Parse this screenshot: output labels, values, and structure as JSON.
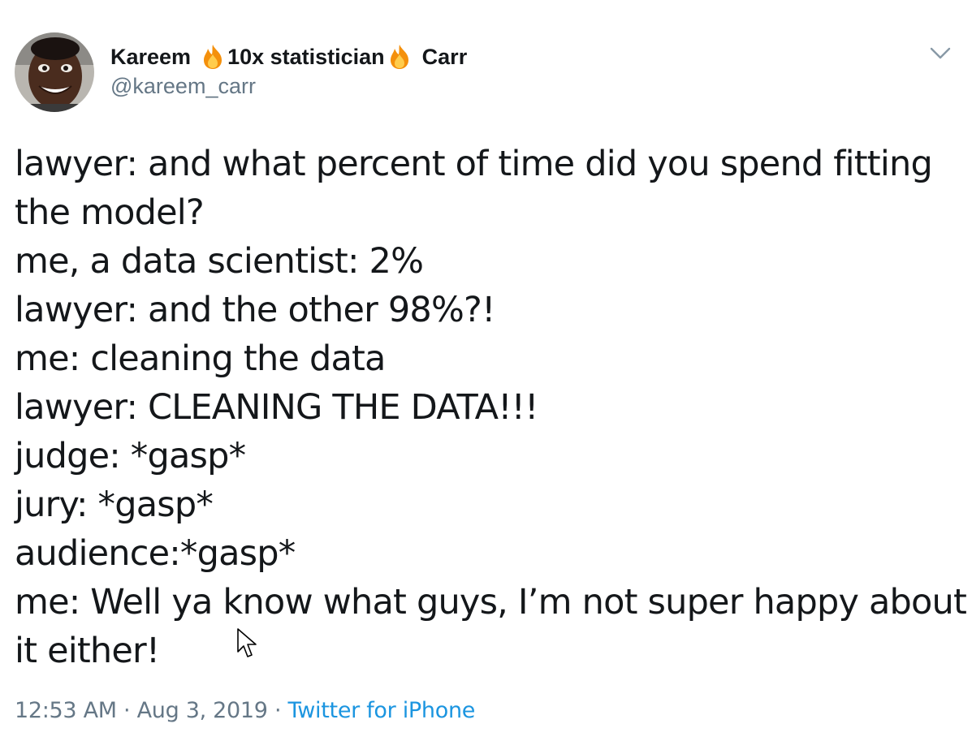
{
  "tweet": {
    "author": {
      "name_first": "Kareem",
      "name_middle": "10x statistician",
      "name_last": "Carr",
      "handle": "@kareem_carr",
      "avatar_icon": "user-avatar-photo",
      "badge_icon": "fire-emoji"
    },
    "menu_icon": "chevron-down-icon",
    "body_lines": [
      "lawyer: and what percent of time did you spend fitting",
      "the model?",
      "me, a data scientist: 2%",
      "lawyer: and the other 98%?!",
      "me: cleaning the data",
      "lawyer: CLEANING THE DATA!!!",
      "judge: *gasp*",
      "jury: *gasp*",
      "audience:*gasp*",
      "me: Well ya know what guys, I’m not super happy about",
      "it either!"
    ],
    "meta": {
      "time": "12:53 AM",
      "separator": " · ",
      "date": "Aug 3, 2019",
      "source": "Twitter for iPhone"
    }
  },
  "colors": {
    "text": "#14171a",
    "secondary": "#657786",
    "link": "#1b95e0"
  }
}
